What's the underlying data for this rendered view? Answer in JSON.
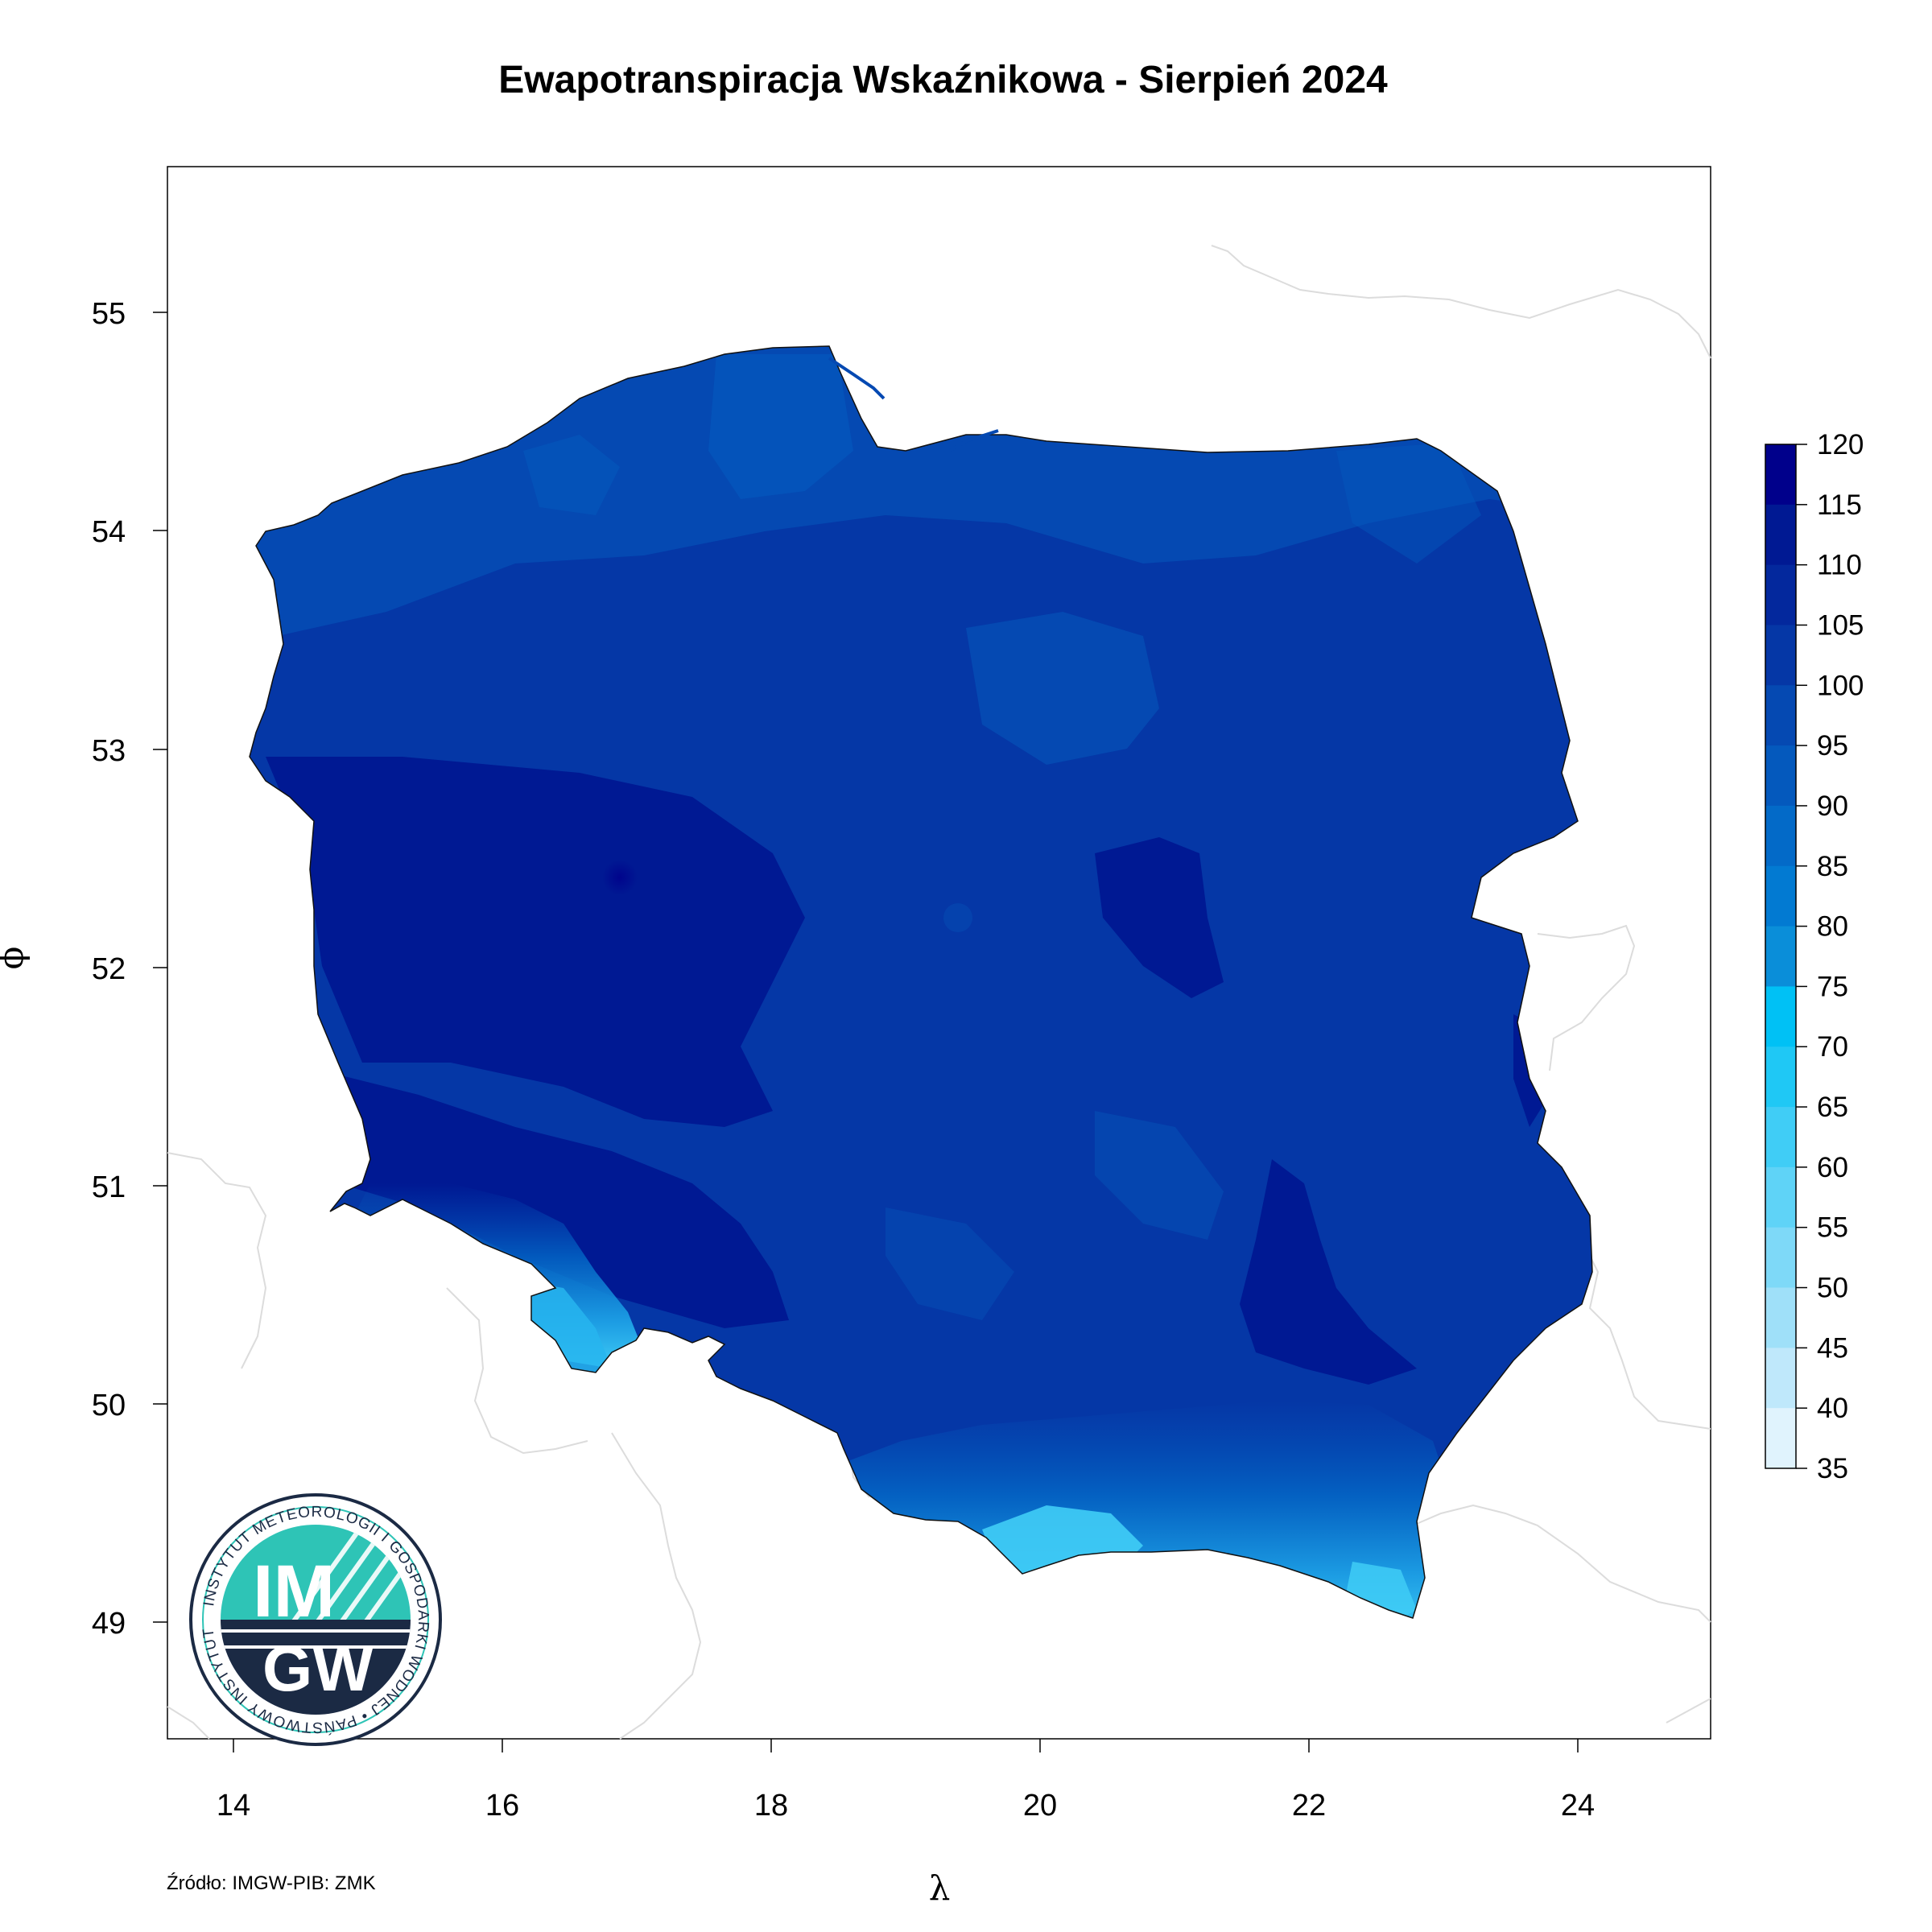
{
  "title": "Ewapotranspiracja Wskaźnikowa - Sierpień 2024",
  "source": "Źródło: IMGW-PIB: ZMK",
  "axes": {
    "xlabel": "λ",
    "ylabel": "ϕ",
    "xlim": [
      13.5,
      25.0
    ],
    "ylim": [
      48.45,
      55.65
    ],
    "xticks": [
      "14",
      "16",
      "18",
      "20",
      "22",
      "24"
    ],
    "yticks": [
      "55",
      "54",
      "53",
      "52",
      "51",
      "50",
      "49"
    ]
  },
  "legend": {
    "breaks": [
      "120",
      "115",
      "110",
      "105",
      "100",
      "95",
      "90",
      "85",
      "80",
      "75",
      "70",
      "65",
      "60",
      "55",
      "50",
      "45",
      "40",
      "35"
    ],
    "colors": [
      "#00008b",
      "#001993",
      "#03289d",
      "#0537a6",
      "#0549b2",
      "#0459bd",
      "#036ac8",
      "#027ad2",
      "#0a8ed9",
      "#00c1f5",
      "#1fc8f5",
      "#40cdf6",
      "#5fd3f7",
      "#7ed9f8",
      "#9fe0f9",
      "#bfe8fb",
      "#e0f3fd"
    ]
  },
  "logo": {
    "monogram_top": "IM",
    "monogram_bottom": "GW",
    "ring_text": "INSTYTUT METEOROLOGII I GOSPODARKI WODNEJ • PAŃSTWOWY INSTYTUT BADAWCZY"
  }
}
